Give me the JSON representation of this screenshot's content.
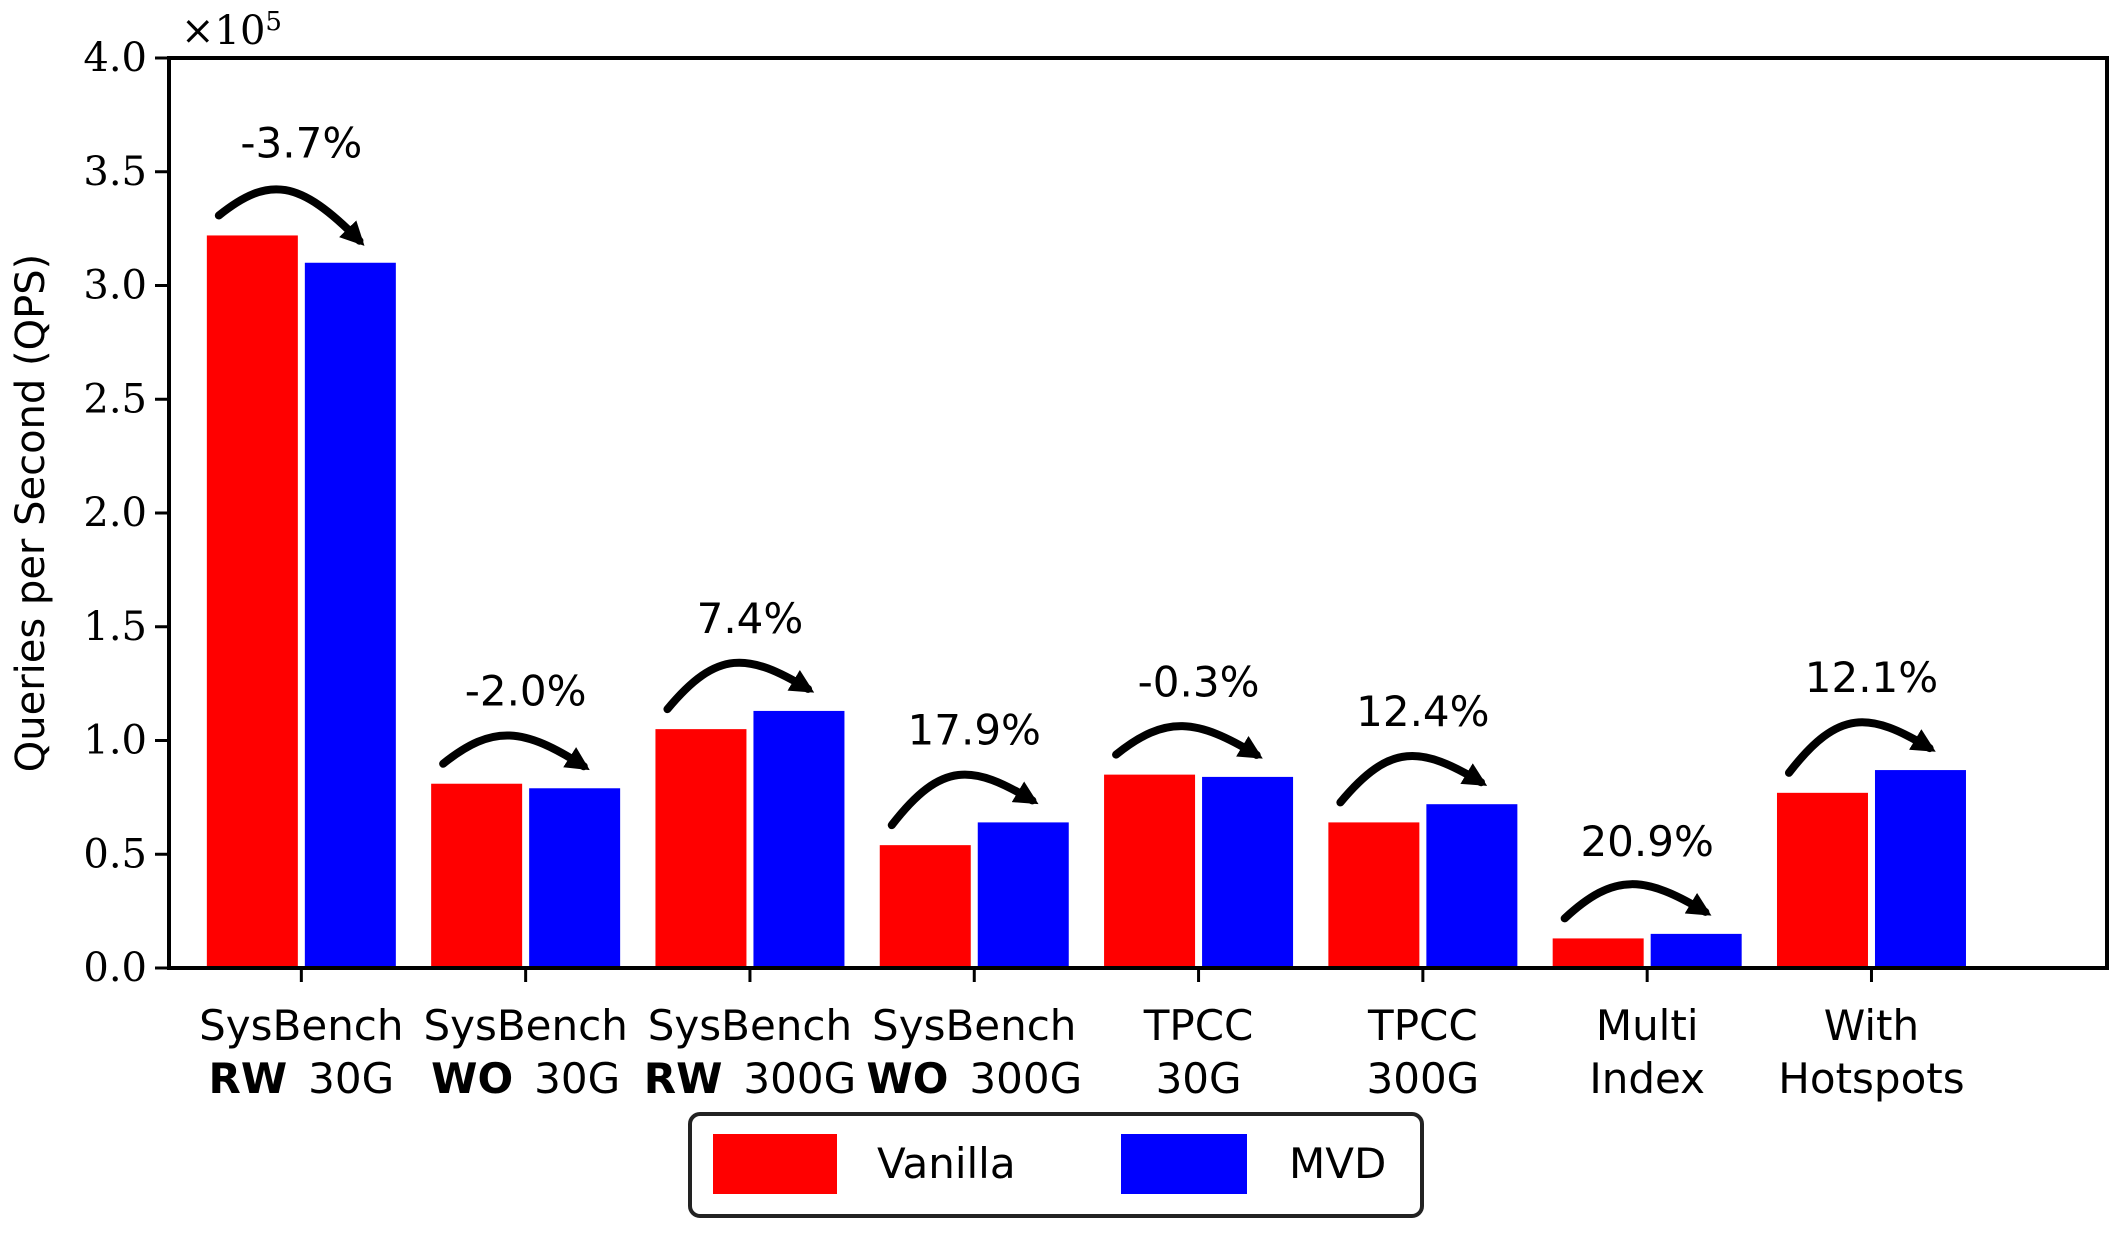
{
  "chart_data": {
    "type": "bar",
    "ylabel": "Queries per Second (QPS)",
    "y_multiplier": "×10",
    "y_exponent": "5",
    "ylim": [
      0,
      4.0
    ],
    "yticks": [
      "0.0",
      "0.5",
      "1.0",
      "1.5",
      "2.0",
      "2.5",
      "3.0",
      "3.5",
      "4.0"
    ],
    "categories": [
      {
        "line1": "SysBench",
        "bold": "RW",
        "rest": "30G"
      },
      {
        "line1": "SysBench",
        "bold": "WO",
        "rest": "30G"
      },
      {
        "line1": "SysBench",
        "bold": "RW",
        "rest": "300G"
      },
      {
        "line1": "SysBench",
        "bold": "WO",
        "rest": "300G"
      },
      {
        "line1": "TPCC",
        "bold": "",
        "rest": "30G"
      },
      {
        "line1": "TPCC",
        "bold": "",
        "rest": "300G"
      },
      {
        "line1": "Multi",
        "bold": "",
        "rest": "Index"
      },
      {
        "line1": "With",
        "bold": "",
        "rest": "Hotspots"
      }
    ],
    "series": [
      {
        "name": "Vanilla",
        "color": "#ff0000",
        "values": [
          3.22,
          0.81,
          1.05,
          0.54,
          0.85,
          0.64,
          0.13,
          0.77
        ]
      },
      {
        "name": "MVD",
        "color": "#0000ff",
        "values": [
          3.1,
          0.79,
          1.13,
          0.64,
          0.84,
          0.72,
          0.15,
          0.87
        ]
      }
    ],
    "annotations": [
      "-3.7%",
      "-2.0%",
      "7.4%",
      "17.9%",
      "-0.3%",
      "12.4%",
      "20.9%",
      "12.1%"
    ],
    "legend": {
      "position": "bottom-center"
    }
  }
}
